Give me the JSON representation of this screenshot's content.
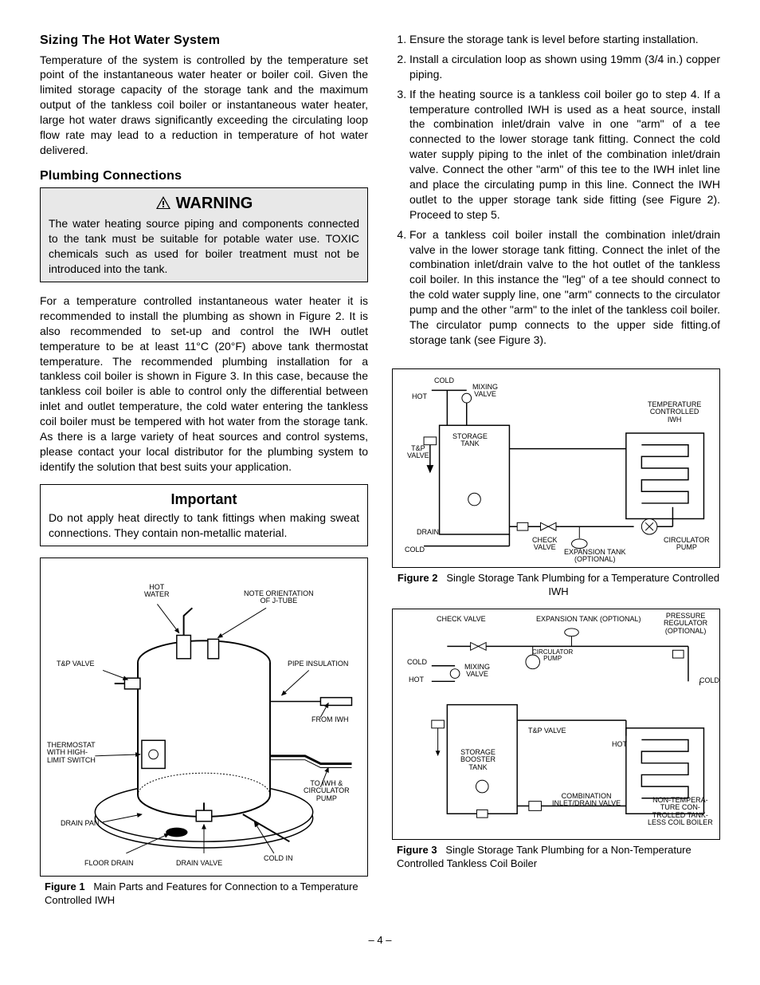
{
  "page_number": "– 4 –",
  "left": {
    "sizing_heading": "Sizing The Hot Water System",
    "sizing_body": "Temperature of the system is controlled by the temperature set point of the instantaneous water heater or boiler coil. Given the limited storage capacity of the storage tank and the maximum output of the tankless coil boiler or instantaneous water heater, large hot water draws significantly exceeding the circulating loop flow rate may lead to a reduction in temperature of hot water delivered.",
    "plumbing_heading": "Plumbing Connections",
    "warning_title": "WARNING",
    "warning_body": "The water heating source piping and components connected to the tank must be suitable for potable water use. TOXIC chemicals such as used for boiler treatment must not be introduced into the tank.",
    "plumbing_body": "For a temperature controlled instantaneous water heater it is recommended to install the plumbing as shown in Figure 2. It is also recommended to set-up and control the IWH outlet temperature to be at least 11°C (20°F) above tank thermostat temperature. The recommended plumbing installation for a tankless coil boiler is shown in Figure 3. In this case, because the tankless coil boiler is able to control only the differential between inlet and outlet temperature, the cold water entering the tankless coil boiler must be tempered with hot water from the storage tank. As there is a large variety of heat sources and control systems, please contact your local distributor for the plumbing system to identify the solution that best suits your application.",
    "important_title": "Important",
    "important_body": "Do not apply heat directly to tank fittings when making sweat connections. They contain non-metallic material.",
    "fig1_caption_bold": "Figure 1",
    "fig1_caption": "Main Parts and Features for Connection to a Temperature Controlled IWH",
    "fig1_labels": {
      "hot_water": "HOT\nWATER",
      "note_orientation": "NOTE ORIENTATION\nOF J-TUBE",
      "tp_valve": "T&P VALVE",
      "pipe_insulation": "PIPE INSULATION",
      "from_iwh": "FROM IWH",
      "thermostat": "THERMOSTAT\nWITH HIGH-\nLIMIT SWITCH",
      "to_iwh": "TO IWH &\nCIRCULATOR\nPUMP",
      "drain_pan": "DRAIN PAN",
      "floor_drain": "FLOOR DRAIN",
      "drain_valve": "DRAIN VALVE",
      "cold_in": "COLD IN"
    }
  },
  "right": {
    "steps": [
      "Ensure the storage tank is level before starting installation.",
      "Install a circulation loop as shown using 19mm (3/4 in.) copper piping.",
      "If the heating source is a tankless coil boiler go to step 4. If a temperature controlled IWH is used as a heat source, install the combination inlet/drain valve in one \"arm\" of a tee connected to the lower storage tank fitting. Connect the cold water supply piping to the inlet of the combination inlet/drain valve. Connect the other \"arm\" of this tee to the IWH inlet line and place the circulating pump in this line. Connect the IWH outlet to the upper storage tank side fitting (see Figure 2). Proceed to step 5.",
      "For a tankless coil boiler install the combination inlet/drain valve in the lower storage tank fitting. Connect the inlet of the combination inlet/drain valve to the hot outlet of the tankless coil boiler. In this instance the \"leg\" of a tee should connect to the cold water supply line, one \"arm\" connects to the circulator pump and the other \"arm\" to the inlet of the tankless coil boiler. The circulator pump connects to the upper side fitting.of storage tank (see Figure 3)."
    ],
    "fig2_caption_bold": "Figure 2",
    "fig2_caption": "Single Storage Tank Plumbing for a Temperature Controlled IWH",
    "fig2_labels": {
      "cold": "COLD",
      "hot": "HOT",
      "mixing_valve": "MIXING\nVALVE",
      "temp_iwh": "TEMPERATURE\nCONTROLLED\nIWH",
      "tp_valve": "T&P\nVALVE",
      "storage_tank": "STORAGE\nTANK",
      "drain": "DRAIN",
      "check_valve": "CHECK\nVALVE",
      "expansion_tank": "EXPANSION TANK\n(OPTIONAL)",
      "circulator_pump": "CIRCULATOR\nPUMP",
      "cold2": "COLD"
    },
    "fig3_caption_bold": "Figure 3",
    "fig3_caption": "Single Storage Tank Plumbing for a Non-Temperature Controlled Tankless Coil Boiler",
    "fig3_labels": {
      "check_valve": "CHECK VALVE",
      "expansion_tank": "EXPANSION TANK (OPTIONAL)",
      "pressure_reg": "PRESSURE\nREGULATOR\n(OPTIONAL)",
      "circulator_pump": "CIRCULATOR\nPUMP",
      "cold": "COLD",
      "hot": "HOT",
      "mixing_valve": "MIXING\nVALVE",
      "cold2": "COLD",
      "tp_valve": "T&P VALVE",
      "storage_booster": "STORAGE\nBOOSTER\nTANK",
      "hot2": "HOT",
      "combo_valve": "COMBINATION\nINLET/DRAIN VALVE",
      "nontemp": "NON-TEMPERA-\nTURE CON-\nTROLLED TANK-\nLESS COIL BOILER"
    }
  },
  "colors": {
    "text": "#000000",
    "bg": "#ffffff",
    "callout_bg": "#e8e8e8",
    "border": "#000000"
  }
}
